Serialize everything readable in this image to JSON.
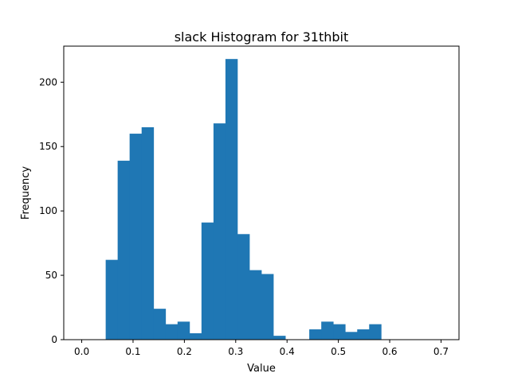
{
  "chart_data": {
    "type": "bar",
    "title": "slack Histogram for 31thbit",
    "xlabel": "Value",
    "ylabel": "Frequency",
    "xlim": [
      -0.035,
      0.735
    ],
    "ylim": [
      0,
      228
    ],
    "x_ticks": [
      0.0,
      0.1,
      0.2,
      0.3,
      0.4,
      0.5,
      0.6,
      0.7
    ],
    "x_tick_labels": [
      "0.0",
      "0.1",
      "0.2",
      "0.3",
      "0.4",
      "0.5",
      "0.6",
      "0.7"
    ],
    "y_ticks": [
      0,
      50,
      100,
      150,
      200
    ],
    "y_tick_labels": [
      "0",
      "50",
      "100",
      "150",
      "200"
    ],
    "bin_edges": [
      0.0,
      0.0233,
      0.0467,
      0.07,
      0.0933,
      0.1167,
      0.14,
      0.1633,
      0.1867,
      0.21,
      0.2333,
      0.2567,
      0.28,
      0.3033,
      0.3267,
      0.35,
      0.3733,
      0.3967,
      0.42,
      0.4433,
      0.4667,
      0.49,
      0.5133,
      0.5367,
      0.56,
      0.5833,
      0.6067,
      0.63,
      0.6533,
      0.6767,
      0.7
    ],
    "values": [
      0,
      0,
      62,
      139,
      160,
      165,
      24,
      12,
      14,
      5,
      91,
      168,
      218,
      82,
      54,
      51,
      3,
      0,
      0,
      8,
      14,
      12,
      6,
      8,
      12,
      0,
      0,
      0,
      0,
      0
    ],
    "bar_color": "#1f77b4",
    "grid": false,
    "legend": "none"
  }
}
